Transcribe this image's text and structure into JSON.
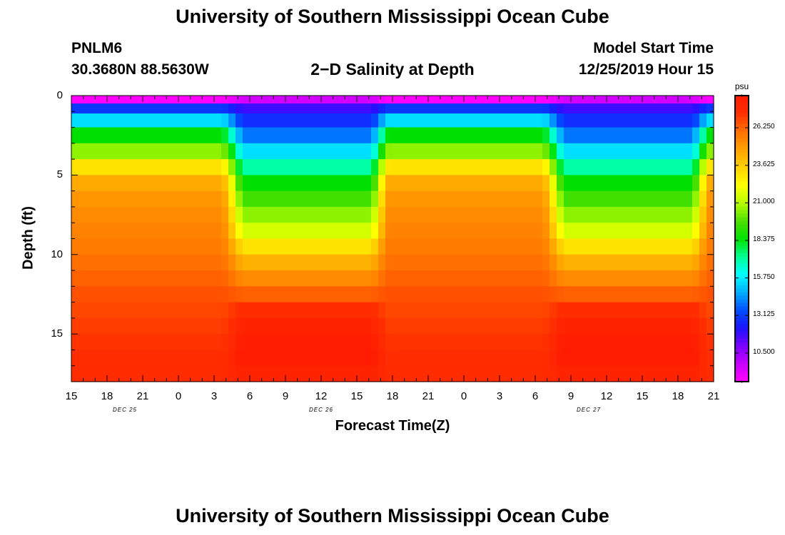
{
  "page": {
    "title_top": "University of Southern Mississippi Ocean Cube",
    "title_bottom": "University of Southern Mississippi Ocean Cube"
  },
  "header": {
    "station": "PNLM6",
    "coords": "30.3680N 88.5630W",
    "plot_title": "2−D Salinity at Depth",
    "model_label": "Model Start Time",
    "model_time": "12/25/2019 Hour 15"
  },
  "chart_data": {
    "type": "heatmap",
    "title": "2-D Salinity at Depth",
    "xlabel": "Forecast Time(Z)",
    "ylabel": "Depth (ft)",
    "x_hours_range": [
      0,
      54
    ],
    "ylim": [
      0,
      18
    ],
    "y_ticks": [
      {
        "v": 0,
        "label": "0"
      },
      {
        "v": 5,
        "label": "5"
      },
      {
        "v": 10,
        "label": "10"
      },
      {
        "v": 15,
        "label": "15"
      }
    ],
    "x_ticks": [
      {
        "h": 0,
        "label": "15"
      },
      {
        "h": 3,
        "label": "18"
      },
      {
        "h": 6,
        "label": "21"
      },
      {
        "h": 9,
        "label": "0"
      },
      {
        "h": 12,
        "label": "3"
      },
      {
        "h": 15,
        "label": "6"
      },
      {
        "h": 18,
        "label": "9"
      },
      {
        "h": 21,
        "label": "12"
      },
      {
        "h": 24,
        "label": "15"
      },
      {
        "h": 27,
        "label": "18"
      },
      {
        "h": 30,
        "label": "21"
      },
      {
        "h": 33,
        "label": "0"
      },
      {
        "h": 36,
        "label": "3"
      },
      {
        "h": 39,
        "label": "6"
      },
      {
        "h": 42,
        "label": "9"
      },
      {
        "h": 45,
        "label": "12"
      },
      {
        "h": 48,
        "label": "15"
      },
      {
        "h": 51,
        "label": "18"
      },
      {
        "h": 54,
        "label": "21"
      }
    ],
    "date_labels": [
      {
        "h": 4.5,
        "label": "DEC 25"
      },
      {
        "h": 21,
        "label": "DEC 26"
      },
      {
        "h": 43.5,
        "label": "DEC 27"
      }
    ],
    "depth_rows": [
      0.25,
      0.75,
      1.5,
      2.5,
      3.5,
      4.5,
      5.5,
      6.5,
      7.5,
      8.5,
      9.5,
      10.5,
      11.5,
      12.5,
      13.5,
      14.5,
      15.5,
      16.5,
      17.5
    ],
    "time_columns_hours": [
      0,
      0.6,
      1.2,
      1.8,
      2.4,
      3,
      3.6,
      4.2,
      4.8,
      5.4,
      6,
      6.6,
      7.2,
      7.8,
      8.4,
      9,
      9.6,
      10.2,
      10.8,
      11.4,
      12,
      12.6,
      13.2,
      13.8,
      14.4,
      15,
      15.6,
      16.2,
      16.8,
      17.4,
      18,
      18.6,
      19.2,
      19.8,
      20.4,
      21,
      21.6,
      22.2,
      22.8,
      23.4,
      24,
      24.6,
      25.2,
      25.8,
      26.4,
      27,
      27.6,
      28.2,
      28.8,
      29.4,
      30,
      30.6,
      31.2,
      31.8,
      32.4,
      33,
      33.6,
      34.2,
      34.8,
      35.4,
      36,
      36.6,
      37.2,
      37.8,
      38.4,
      39,
      39.6,
      40.2,
      40.8,
      41.4,
      42,
      42.6,
      43.2,
      43.8,
      44.4,
      45,
      45.6,
      46.2,
      46.8,
      47.4,
      48,
      48.6,
      49.2,
      49.8,
      50.4,
      51,
      51.6,
      52.2,
      52.8,
      53.4
    ],
    "fresh_periods_hours": [
      {
        "start": 12.5,
        "end": 25
      },
      {
        "start": 39.5,
        "end": 52
      }
    ],
    "salinity_profiles": {
      "well_mixed": [
        8.5,
        13.0,
        15.5,
        18.5,
        20.5,
        23.0,
        24.5,
        25.0,
        25.3,
        25.5,
        25.7,
        26.0,
        26.3,
        26.6,
        26.8,
        27.0,
        27.2,
        27.4,
        27.5
      ],
      "stratified": [
        9.5,
        11.8,
        12.8,
        14.0,
        15.5,
        17.0,
        18.5,
        19.5,
        20.5,
        21.5,
        23.0,
        24.3,
        25.3,
        26.3,
        27.5,
        28.0,
        28.3,
        28.4,
        28.0
      ]
    },
    "colorbar": {
      "unit": "psu",
      "min": 8.5,
      "max": 28.5,
      "ticks": [
        10.5,
        13.125,
        15.75,
        18.375,
        21.0,
        23.625,
        26.25
      ],
      "tick_labels": [
        "10.500",
        "13.125",
        "15.750",
        "18.375",
        "21.000",
        "23.625",
        "26.250"
      ],
      "colors": [
        "#ff00ff",
        "#c800ff",
        "#7a00ff",
        "#1a14ff",
        "#0050ff",
        "#00b0ff",
        "#00ffff",
        "#00ff90",
        "#00e000",
        "#50e000",
        "#b8ff00",
        "#ffff00",
        "#ffd000",
        "#ffa000",
        "#ff7000",
        "#ff3000",
        "#ff1a00"
      ]
    }
  }
}
